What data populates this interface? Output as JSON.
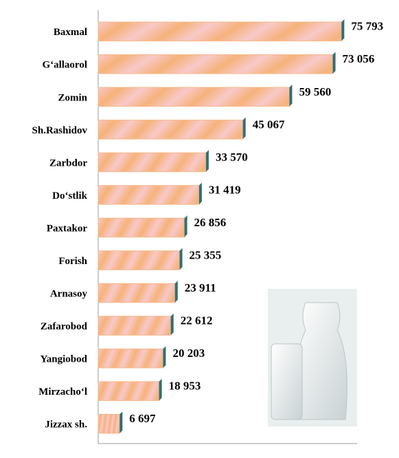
{
  "chart_data": {
    "type": "barh",
    "categories": [
      "Baxmal",
      "G‘allaorol",
      "Zomin",
      "Sh.Rashidov",
      "Zarbdor",
      "Do‘stlik",
      "Paxtakor",
      "Forish",
      "Arnasoy",
      "Zafarobod",
      "Yangiobod",
      "Mirzacho‘l",
      "Jizzax sh."
    ],
    "values": [
      75793,
      73056,
      59560,
      45067,
      33570,
      31419,
      26856,
      25355,
      23911,
      22612,
      20203,
      18953,
      6697
    ],
    "value_labels": [
      "75 793",
      "73 056",
      "59 560",
      "45 067",
      "33 570",
      "31 419",
      "26 856",
      "25 355",
      "23 911",
      "22 612",
      "20 203",
      "18 953",
      "6 697"
    ],
    "color": "#f5b98a",
    "cap_color": "#2f6f73",
    "xlim": [
      0,
      80000
    ]
  }
}
